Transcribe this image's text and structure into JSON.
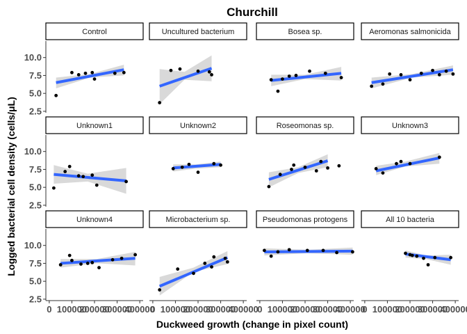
{
  "chart_data": {
    "type": "scatter",
    "title": "Churchill",
    "xlabel": "Duckweed growth (change in pixel count)",
    "ylabel": "Logged bacterial cell density (cells/μL)",
    "xlim": [
      -15000,
      415000
    ],
    "ylim": [
      2.3,
      12.3
    ],
    "x_ticks": [
      0,
      100000,
      200000,
      300000,
      400000
    ],
    "x_tick_labels": [
      "0",
      "100000",
      "200000",
      "300000",
      "400000"
    ],
    "y_ticks": [
      2.5,
      5.0,
      7.5,
      10.0
    ],
    "y_tick_labels": [
      "2.5",
      "5.0",
      "7.5",
      "10.0"
    ],
    "grid": false,
    "facets": [
      {
        "label": "Control",
        "points": [
          [
            30000,
            4.7
          ],
          [
            100000,
            7.9
          ],
          [
            130000,
            7.6
          ],
          [
            160000,
            7.8
          ],
          [
            190000,
            7.9
          ],
          [
            200000,
            7.0
          ],
          [
            290000,
            7.8
          ],
          [
            330000,
            7.9
          ]
        ],
        "fit": [
          [
            30000,
            6.5
          ],
          [
            330000,
            8.3
          ]
        ],
        "band_lo": [
          [
            30000,
            5.7
          ],
          [
            180000,
            7.2
          ],
          [
            330000,
            7.5
          ]
        ],
        "band_hi": [
          [
            30000,
            7.2
          ],
          [
            180000,
            7.7
          ],
          [
            330000,
            9.0
          ]
        ]
      },
      {
        "label": "Uncultured bacterium",
        "points": [
          [
            30000,
            3.7
          ],
          [
            80000,
            8.2
          ],
          [
            120000,
            8.4
          ],
          [
            200000,
            8.1
          ],
          [
            250000,
            8.0
          ],
          [
            260000,
            7.6
          ]
        ],
        "fit": [
          [
            30000,
            6.0
          ],
          [
            260000,
            8.5
          ]
        ],
        "band_lo": [
          [
            30000,
            3.5
          ],
          [
            140000,
            6.9
          ],
          [
            260000,
            6.7
          ]
        ],
        "band_hi": [
          [
            30000,
            8.4
          ],
          [
            140000,
            8.0
          ],
          [
            260000,
            10.3
          ]
        ]
      },
      {
        "label": "Bosea sp.",
        "points": [
          [
            50000,
            6.9
          ],
          [
            80000,
            5.3
          ],
          [
            100000,
            7.0
          ],
          [
            130000,
            7.4
          ],
          [
            160000,
            7.5
          ],
          [
            220000,
            8.1
          ],
          [
            290000,
            7.8
          ],
          [
            360000,
            7.2
          ]
        ],
        "fit": [
          [
            50000,
            6.8
          ],
          [
            360000,
            7.8
          ]
        ],
        "band_lo": [
          [
            50000,
            6.0
          ],
          [
            200000,
            7.0
          ],
          [
            360000,
            6.8
          ]
        ],
        "band_hi": [
          [
            50000,
            7.6
          ],
          [
            200000,
            7.6
          ],
          [
            360000,
            8.7
          ]
        ]
      },
      {
        "label": "Aeromonas salmonicida",
        "points": [
          [
            30000,
            6.0
          ],
          [
            80000,
            6.3
          ],
          [
            110000,
            7.7
          ],
          [
            160000,
            7.6
          ],
          [
            200000,
            6.9
          ],
          [
            250000,
            7.8
          ],
          [
            300000,
            8.2
          ],
          [
            330000,
            7.6
          ],
          [
            360000,
            8.1
          ],
          [
            390000,
            7.7
          ]
        ],
        "fit": [
          [
            30000,
            6.5
          ],
          [
            390000,
            8.3
          ]
        ],
        "band_lo": [
          [
            30000,
            5.7
          ],
          [
            210000,
            7.2
          ],
          [
            390000,
            7.6
          ]
        ],
        "band_hi": [
          [
            30000,
            7.2
          ],
          [
            210000,
            7.7
          ],
          [
            390000,
            8.9
          ]
        ]
      },
      {
        "label": "Unknown1",
        "points": [
          [
            20000,
            4.9
          ],
          [
            70000,
            7.2
          ],
          [
            90000,
            7.9
          ],
          [
            130000,
            6.6
          ],
          [
            150000,
            6.5
          ],
          [
            190000,
            6.7
          ],
          [
            210000,
            5.3
          ],
          [
            340000,
            5.8
          ]
        ],
        "fit": [
          [
            20000,
            6.8
          ],
          [
            340000,
            5.9
          ]
        ],
        "band_lo": [
          [
            20000,
            5.5
          ],
          [
            170000,
            5.8
          ],
          [
            340000,
            4.1
          ]
        ],
        "band_hi": [
          [
            20000,
            8.1
          ],
          [
            170000,
            6.9
          ],
          [
            340000,
            7.7
          ]
        ]
      },
      {
        "label": "Unknown2",
        "points": [
          [
            90000,
            7.6
          ],
          [
            130000,
            7.8
          ],
          [
            160000,
            8.2
          ],
          [
            200000,
            7.1
          ],
          [
            270000,
            8.3
          ],
          [
            300000,
            8.1
          ]
        ],
        "fit": [
          [
            90000,
            7.7
          ],
          [
            300000,
            8.2
          ]
        ],
        "band_lo": [
          [
            90000,
            7.2
          ],
          [
            190000,
            7.6
          ],
          [
            300000,
            7.8
          ]
        ],
        "band_hi": [
          [
            90000,
            8.2
          ],
          [
            190000,
            8.2
          ],
          [
            300000,
            8.6
          ]
        ]
      },
      {
        "label": "Roseomonas sp.",
        "points": [
          [
            40000,
            5.1
          ],
          [
            90000,
            6.8
          ],
          [
            140000,
            7.5
          ],
          [
            150000,
            8.1
          ],
          [
            200000,
            7.8
          ],
          [
            250000,
            7.3
          ],
          [
            270000,
            8.6
          ],
          [
            300000,
            7.7
          ],
          [
            350000,
            8.0
          ]
        ],
        "fit": [
          [
            40000,
            6.1
          ],
          [
            300000,
            8.7
          ]
        ],
        "band_lo": [
          [
            40000,
            5.0
          ],
          [
            170000,
            7.0
          ],
          [
            300000,
            7.8
          ]
        ],
        "band_hi": [
          [
            40000,
            7.1
          ],
          [
            170000,
            7.8
          ],
          [
            300000,
            9.6
          ]
        ]
      },
      {
        "label": "Unknown3",
        "points": [
          [
            50000,
            7.6
          ],
          [
            80000,
            7.0
          ],
          [
            140000,
            8.3
          ],
          [
            160000,
            8.6
          ],
          [
            200000,
            8.3
          ],
          [
            330000,
            9.2
          ]
        ],
        "fit": [
          [
            50000,
            7.3
          ],
          [
            330000,
            9.1
          ]
        ],
        "band_lo": [
          [
            50000,
            6.7
          ],
          [
            180000,
            7.9
          ],
          [
            330000,
            8.3
          ]
        ],
        "band_hi": [
          [
            50000,
            8.0
          ],
          [
            180000,
            8.6
          ],
          [
            330000,
            9.8
          ]
        ]
      },
      {
        "label": "Unknown4",
        "points": [
          [
            50000,
            7.3
          ],
          [
            90000,
            8.6
          ],
          [
            100000,
            7.9
          ],
          [
            140000,
            7.4
          ],
          [
            170000,
            7.5
          ],
          [
            190000,
            7.6
          ],
          [
            220000,
            6.9
          ],
          [
            280000,
            8.0
          ],
          [
            320000,
            8.2
          ],
          [
            380000,
            8.7
          ]
        ],
        "fit": [
          [
            50000,
            7.5
          ],
          [
            380000,
            8.2
          ]
        ],
        "band_lo": [
          [
            50000,
            6.9
          ],
          [
            210000,
            7.5
          ],
          [
            380000,
            7.2
          ]
        ],
        "band_hi": [
          [
            50000,
            8.1
          ],
          [
            210000,
            8.1
          ],
          [
            380000,
            9.1
          ]
        ]
      },
      {
        "label": "Microbacterium sp.",
        "points": [
          [
            30000,
            3.8
          ],
          [
            110000,
            6.7
          ],
          [
            180000,
            6.1
          ],
          [
            230000,
            7.5
          ],
          [
            260000,
            7.0
          ],
          [
            270000,
            8.4
          ],
          [
            320000,
            8.2
          ],
          [
            330000,
            7.7
          ]
        ],
        "fit": [
          [
            30000,
            4.3
          ],
          [
            330000,
            8.3
          ]
        ],
        "band_lo": [
          [
            30000,
            3.0
          ],
          [
            180000,
            6.3
          ],
          [
            330000,
            7.4
          ]
        ],
        "band_hi": [
          [
            30000,
            5.6
          ],
          [
            180000,
            6.9
          ],
          [
            330000,
            9.2
          ]
        ]
      },
      {
        "label": "Pseudomonas protogens",
        "points": [
          [
            20000,
            9.3
          ],
          [
            50000,
            8.5
          ],
          [
            80000,
            9.1
          ],
          [
            130000,
            9.4
          ],
          [
            210000,
            9.3
          ],
          [
            280000,
            9.3
          ],
          [
            340000,
            9.0
          ],
          [
            410000,
            9.1
          ]
        ],
        "fit": [
          [
            20000,
            9.1
          ],
          [
            410000,
            9.2
          ]
        ],
        "band_lo": [
          [
            20000,
            8.6
          ],
          [
            210000,
            8.9
          ],
          [
            410000,
            8.7
          ]
        ],
        "band_hi": [
          [
            20000,
            9.6
          ],
          [
            210000,
            9.4
          ],
          [
            410000,
            9.7
          ]
        ]
      },
      {
        "label": "All 10 bacteria",
        "points": [
          [
            180000,
            8.9
          ],
          [
            200000,
            8.7
          ],
          [
            210000,
            8.6
          ],
          [
            230000,
            8.5
          ],
          [
            260000,
            8.2
          ],
          [
            280000,
            7.3
          ],
          [
            310000,
            8.3
          ],
          [
            380000,
            8.3
          ]
        ],
        "fit": [
          [
            180000,
            8.8
          ],
          [
            380000,
            8.0
          ]
        ],
        "band_lo": [
          [
            180000,
            8.3
          ],
          [
            270000,
            8.1
          ],
          [
            380000,
            7.3
          ]
        ],
        "band_hi": [
          [
            180000,
            9.3
          ],
          [
            270000,
            8.6
          ],
          [
            380000,
            8.7
          ]
        ]
      }
    ]
  },
  "colors": {
    "fit_line": "#3366ff",
    "band": "#d9d9d9",
    "point": "#000000",
    "frame": "#333333"
  }
}
